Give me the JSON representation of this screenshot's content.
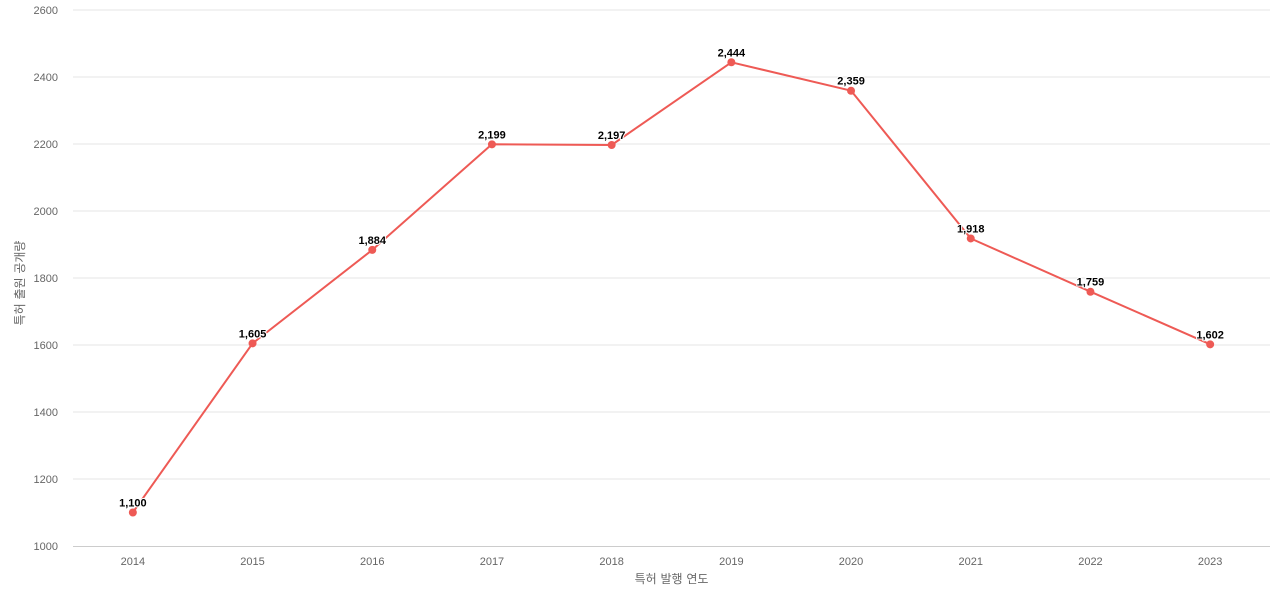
{
  "chart_data": {
    "type": "line",
    "title": "",
    "xlabel": "특허 발행 연도",
    "ylabel": "특허 출원 공개량",
    "categories": [
      "2014",
      "2015",
      "2016",
      "2017",
      "2018",
      "2019",
      "2020",
      "2021",
      "2022",
      "2023"
    ],
    "series": [
      {
        "values": [
          1100,
          1605,
          1884,
          2199,
          2197,
          2444,
          2359,
          1918,
          1759,
          1602
        ],
        "labels": [
          "1,100",
          "1,605",
          "1,884",
          "2,199",
          "2,197",
          "2,444",
          "2,359",
          "1,918",
          "1,759",
          "1,602"
        ],
        "color": "#ee5a55"
      }
    ],
    "ylim": [
      1000,
      2600
    ],
    "yticks": [
      "1000",
      "1200",
      "1400",
      "1600",
      "1800",
      "2000",
      "2200",
      "2400",
      "2600"
    ],
    "grid": true,
    "legend": "none"
  }
}
